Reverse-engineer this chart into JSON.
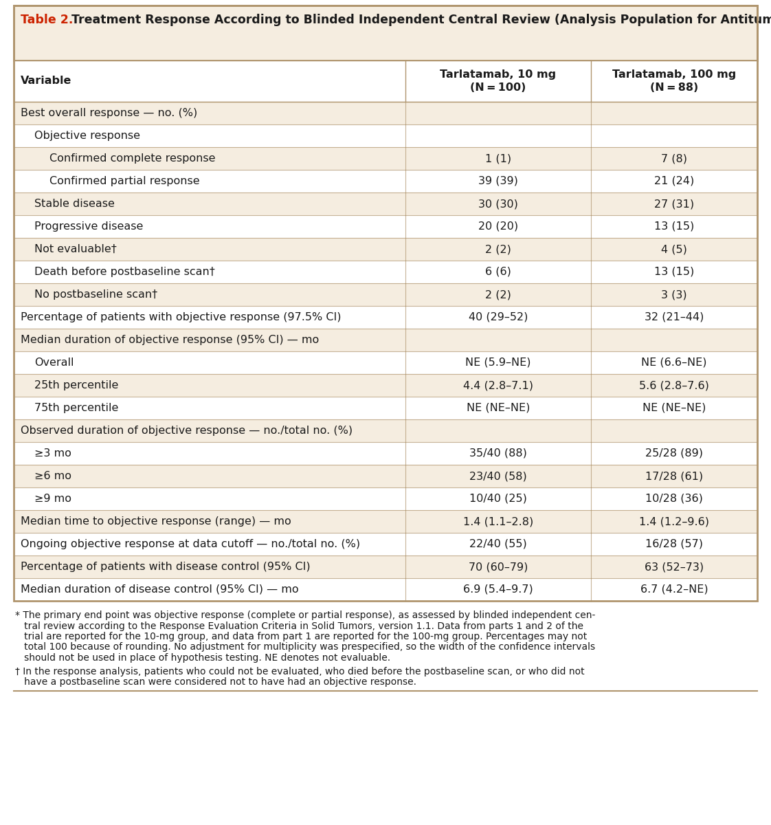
{
  "title_red": "Table 2.",
  "title_black": " Treatment Response According to Blinded Independent Central Review (Analysis Population for Antitumor Activity).*",
  "col2_header": "Tarlatamab, 10 mg\n(N = 100)",
  "col3_header": "Tarlatamab, 100 mg\n(N = 88)",
  "bg_shaded_color": "#f5ede0",
  "bg_white_color": "#ffffff",
  "border_color": "#b0956e",
  "title_bg_color": "#f5ede0",
  "col_header_bg": "#ffffff",
  "rows": [
    {
      "label": "Best overall response — no. (%)",
      "indent": 0,
      "val1": "",
      "val2": "",
      "shaded": true
    },
    {
      "label": "Objective response",
      "indent": 1,
      "val1": "",
      "val2": "",
      "shaded": false
    },
    {
      "label": "Confirmed complete response",
      "indent": 2,
      "val1": "1 (1)",
      "val2": "7 (8)",
      "shaded": true
    },
    {
      "label": "Confirmed partial response",
      "indent": 2,
      "val1": "39 (39)",
      "val2": "21 (24)",
      "shaded": false
    },
    {
      "label": "Stable disease",
      "indent": 1,
      "val1": "30 (30)",
      "val2": "27 (31)",
      "shaded": true
    },
    {
      "label": "Progressive disease",
      "indent": 1,
      "val1": "20 (20)",
      "val2": "13 (15)",
      "shaded": false
    },
    {
      "label": "Not evaluable†",
      "indent": 1,
      "val1": "2 (2)",
      "val2": "4 (5)",
      "shaded": true
    },
    {
      "label": "Death before postbaseline scan†",
      "indent": 1,
      "val1": "6 (6)",
      "val2": "13 (15)",
      "shaded": false
    },
    {
      "label": "No postbaseline scan†",
      "indent": 1,
      "val1": "2 (2)",
      "val2": "3 (3)",
      "shaded": true
    },
    {
      "label": "Percentage of patients with objective response (97.5% CI)",
      "indent": 0,
      "val1": "40 (29–52)",
      "val2": "32 (21–44)",
      "shaded": false
    },
    {
      "label": "Median duration of objective response (95% CI) — mo",
      "indent": 0,
      "val1": "",
      "val2": "",
      "shaded": true
    },
    {
      "label": "Overall",
      "indent": 1,
      "val1": "NE (5.9–NE)",
      "val2": "NE (6.6–NE)",
      "shaded": false
    },
    {
      "label": "25th percentile",
      "indent": 1,
      "val1": "4.4 (2.8–7.1)",
      "val2": "5.6 (2.8–7.6)",
      "shaded": true
    },
    {
      "label": "75th percentile",
      "indent": 1,
      "val1": "NE (NE–NE)",
      "val2": "NE (NE–NE)",
      "shaded": false
    },
    {
      "label": "Observed duration of objective response — no./total no. (%)",
      "indent": 0,
      "val1": "",
      "val2": "",
      "shaded": true
    },
    {
      "label": "≥3 mo",
      "indent": 1,
      "val1": "35/40 (88)",
      "val2": "25/28 (89)",
      "shaded": false
    },
    {
      "label": "≥6 mo",
      "indent": 1,
      "val1": "23/40 (58)",
      "val2": "17/28 (61)",
      "shaded": true
    },
    {
      "label": "≥9 mo",
      "indent": 1,
      "val1": "10/40 (25)",
      "val2": "10/28 (36)",
      "shaded": false
    },
    {
      "label": "Median time to objective response (range) — mo",
      "indent": 0,
      "val1": "1.4 (1.1–2.8)",
      "val2": "1.4 (1.2–9.6)",
      "shaded": true
    },
    {
      "label": "Ongoing objective response at data cutoff — no./total no. (%)",
      "indent": 0,
      "val1": "22/40 (55)",
      "val2": "16/28 (57)",
      "shaded": false
    },
    {
      "label": "Percentage of patients with disease control (95% CI)",
      "indent": 0,
      "val1": "70 (60–79)",
      "val2": "63 (52–73)",
      "shaded": true
    },
    {
      "label": "Median duration of disease control (95% CI) — mo",
      "indent": 0,
      "val1": "6.9 (5.4–9.7)",
      "val2": "6.7 (4.2–NE)",
      "shaded": false
    }
  ],
  "footnote_star": "* The primary end point was objective response (complete or partial response), as assessed by blinded independent cen-\n   tral review according to the Response Evaluation Criteria in Solid Tumors, version 1.1. Data from parts 1 and 2 of the\n   trial are reported for the 10-mg group, and data from part 1 are reported for the 100-mg group. Percentages may not\n   total 100 because of rounding. No adjustment for multiplicity was prespecified, so the width of the confidence intervals\n   should not be used in place of hypothesis testing. NE denotes not evaluable.",
  "footnote_dagger": "† In the response analysis, patients who could not be evaluated, who died before the postbaseline scan, or who did not\n   have a postbaseline scan were considered not to have had an objective response.",
  "text_color": "#1a1a1a",
  "red_color": "#cc2200",
  "font_size": 11.5,
  "header_font_size": 11.5,
  "title_font_size": 12.5,
  "footnote_font_size": 10.0
}
